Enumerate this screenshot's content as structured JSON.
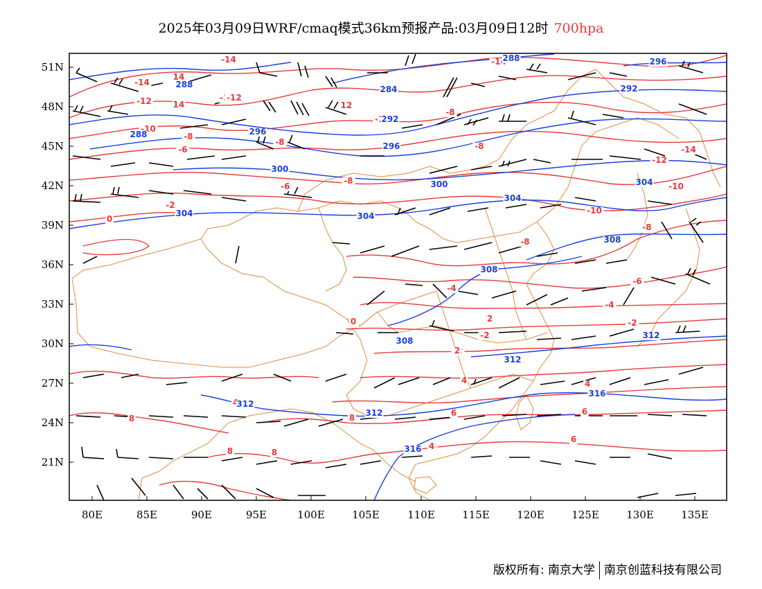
{
  "title": {
    "main": "2025年03月09日WRF/cmaq模式36km预报产品:03月09日12时",
    "level": "700hpa",
    "level_color": "#e8393b"
  },
  "map": {
    "lon_labels": [
      "80E",
      "85E",
      "90E",
      "95E",
      "100E",
      "105E",
      "110E",
      "115E",
      "120E",
      "125E",
      "130E",
      "135E"
    ],
    "lat_labels": [
      "51N",
      "48N",
      "45N",
      "42N",
      "39N",
      "36N",
      "33N",
      "30N",
      "27N",
      "24N",
      "21N"
    ],
    "temperature_color": "#e8393b",
    "height_color": "#1a3fe0",
    "border_color": "#e08a3c",
    "wind_barb_color": "#000000",
    "temperature_labels": [
      "-14",
      "14",
      "-14",
      "-12",
      "-14",
      "12",
      "-12",
      "14",
      "-12",
      "-10",
      "-8",
      "-12",
      "-8",
      "-8",
      "-10",
      "-8",
      "-6",
      "-6",
      "-8",
      "-8",
      "-14",
      "-12",
      "-10",
      "-8",
      "-6",
      "-4",
      "-2",
      "0",
      "-2",
      "0",
      "0",
      "4",
      "2",
      "-2",
      "-2",
      "-4",
      "2",
      "4",
      "4",
      "6",
      "6",
      "8",
      "8",
      "8",
      "8",
      "6",
      "6",
      "4"
    ],
    "height_labels": [
      "288",
      "288",
      "284",
      "292",
      "296",
      "292",
      "296",
      "288",
      "300",
      "296",
      "300",
      "304",
      "304",
      "304",
      "304",
      "308",
      "308",
      "308",
      "312",
      "312",
      "312",
      "312",
      "316",
      "316"
    ]
  },
  "copyright": {
    "left": "版权所有: 南京大学",
    "right": "南京创蓝科技有限公司"
  }
}
